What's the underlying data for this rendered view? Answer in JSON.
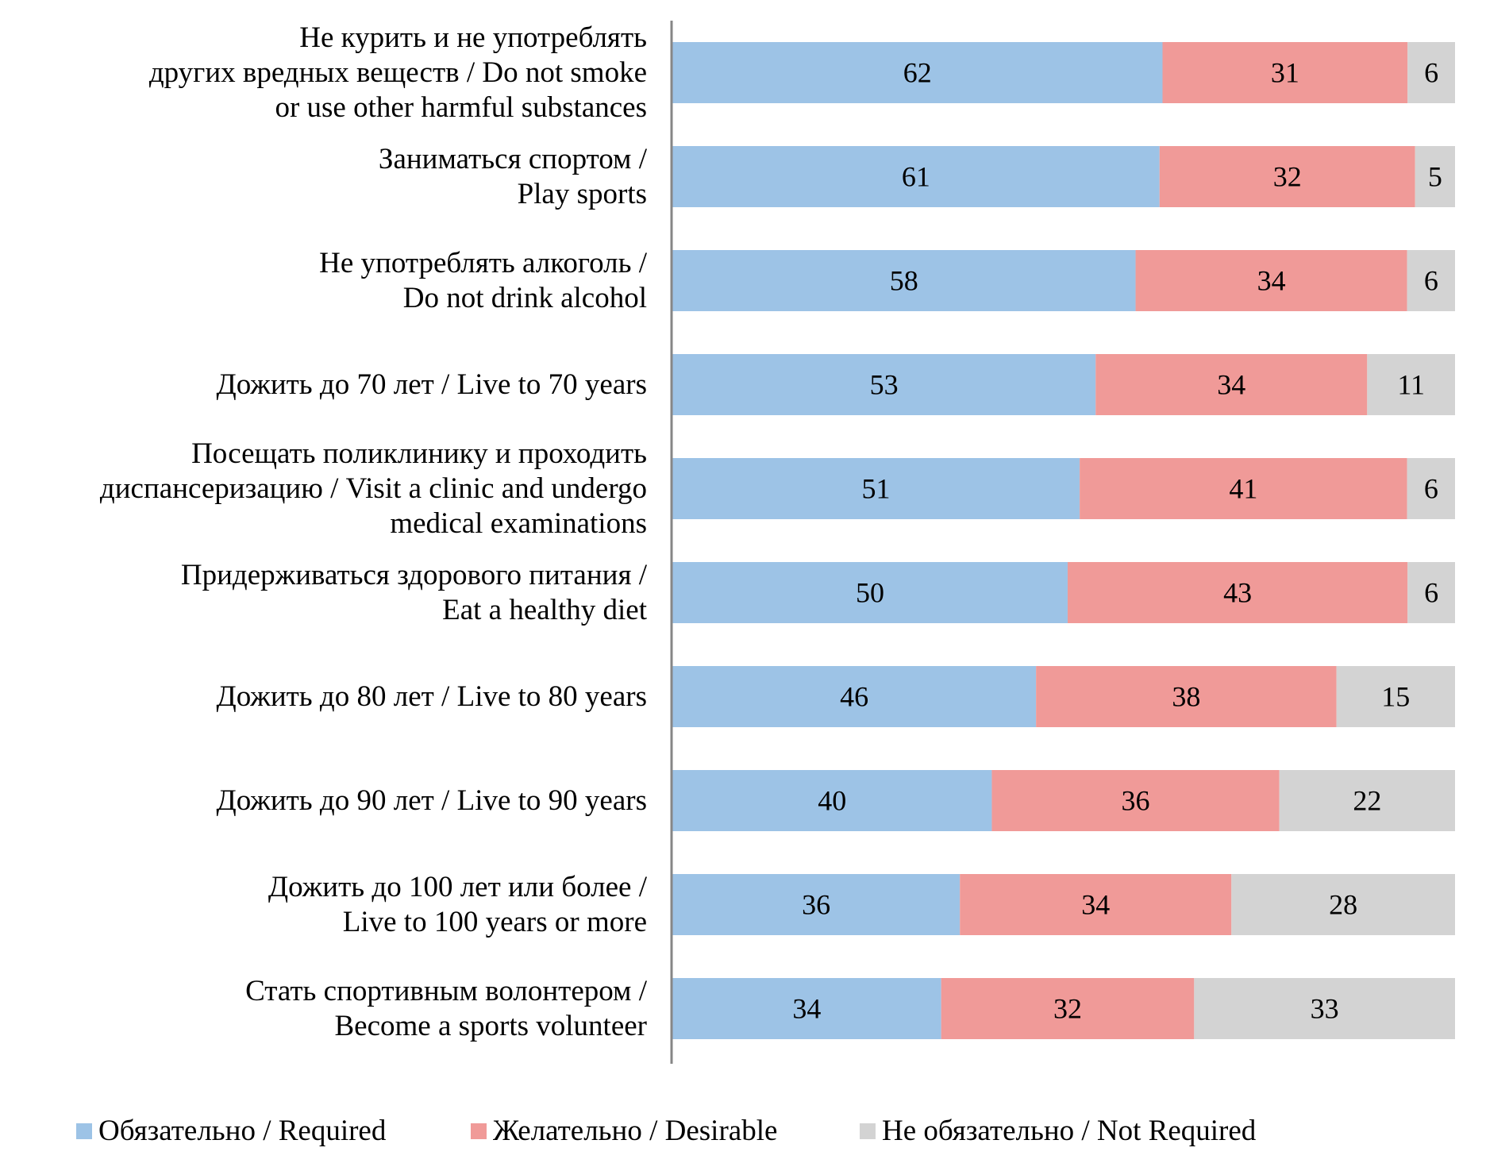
{
  "chart_data": {
    "type": "bar",
    "orientation": "horizontal",
    "stacked": true,
    "normalized_percent": true,
    "title": "",
    "xlabel": "",
    "ylabel": "",
    "grid": false,
    "legend_position": "bottom",
    "categories": [
      "Не курить и не употреблять\nдругих вредных веществ / Do not smoke\nor use other harmful substances",
      "Заниматься спортом /\nPlay sports",
      "Не употреблять алкоголь /\nDo not drink alcohol",
      "Дожить до 70 лет / Live to 70 years",
      "Посещать поликлинику и проходить\nдиспансеризацию  / Visit a clinic and undergo\nmedical examinations",
      "Придерживаться здорового питания /\nEat a healthy diet",
      "Дожить до 80 лет / Live to 80 years",
      "Дожить до 90 лет / Live to 90 years",
      "Дожить до 100 лет или более /\nLive to 100 years or more",
      "Стать спортивным волонтером /\nBecome a sports volunteer"
    ],
    "series": [
      {
        "name": "Обязательно / Required",
        "color": "#9DC3E6",
        "values": [
          62,
          61,
          58,
          53,
          51,
          50,
          46,
          40,
          36,
          34
        ]
      },
      {
        "name": "Желательно / Desirable",
        "color": "#F09A98",
        "values": [
          31,
          32,
          34,
          34,
          41,
          43,
          38,
          36,
          34,
          32
        ]
      },
      {
        "name": "Не обязательно / Not Required",
        "color": "#D3D3D3",
        "values": [
          6,
          5,
          6,
          11,
          6,
          6,
          15,
          22,
          28,
          33
        ]
      }
    ]
  },
  "legend": {
    "items": [
      {
        "label": "Обязательно / Required",
        "color": "#9DC3E6"
      },
      {
        "label": "Желательно / Desirable",
        "color": "#F09A98"
      },
      {
        "label": "Не обязательно / Not Required",
        "color": "#D3D3D3"
      }
    ]
  },
  "colors": {
    "axis": "#868686",
    "text": "#000000"
  }
}
